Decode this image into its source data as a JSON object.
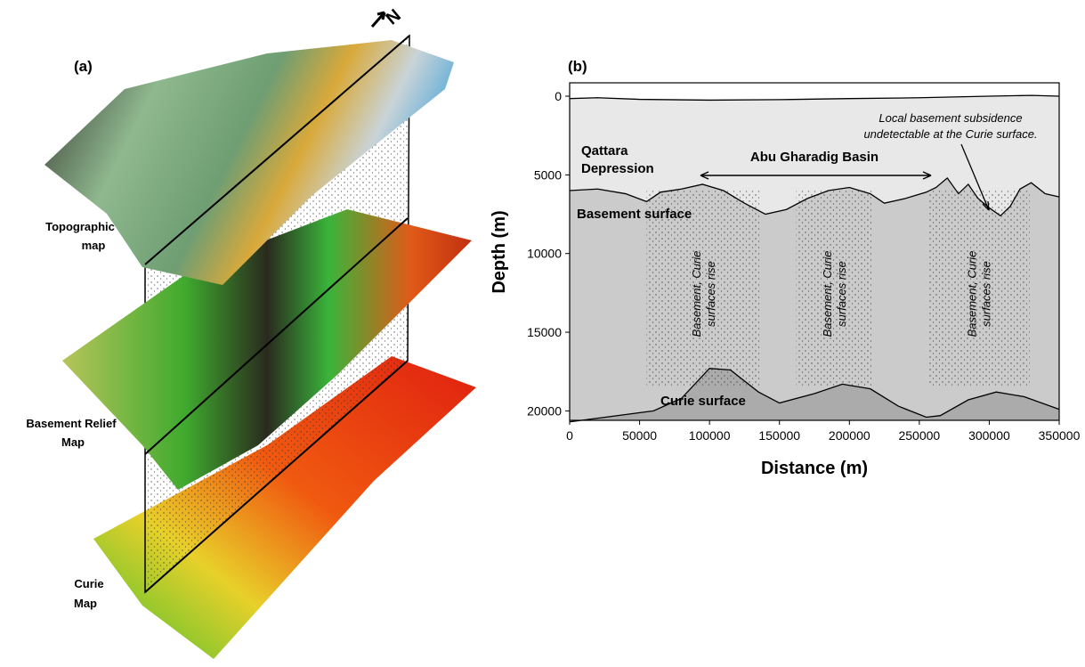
{
  "panel_a": {
    "label": "(a)",
    "north": "N",
    "maps": [
      [
        "Topographic",
        "map"
      ],
      [
        "Basement Relief",
        "Map"
      ],
      [
        "Curie",
        "Map"
      ]
    ]
  },
  "chart_data": {
    "type": "line",
    "panel_label": "(b)",
    "x_label": "Distance (m)",
    "y_label": "Depth (m)",
    "xlim": [
      0,
      350000
    ],
    "xticks": [
      0,
      50000,
      100000,
      150000,
      200000,
      250000,
      300000,
      350000
    ],
    "ylim": [
      -850,
      20600
    ],
    "yticks": [
      0,
      5000,
      10000,
      15000,
      20000
    ],
    "y_inverted": true,
    "series": [
      {
        "x": [
          0,
          20000,
          50000,
          100000,
          150000,
          200000,
          250000,
          300000,
          330000,
          350000
        ],
        "values": [
          150,
          100,
          200,
          250,
          220,
          150,
          100,
          0,
          -50,
          0
        ],
        "color": "#000000"
      },
      {
        "name": "Basement surface",
        "x": [
          0,
          20000,
          40000,
          55000,
          65000,
          80000,
          95000,
          110000,
          125000,
          140000,
          155000,
          170000,
          185000,
          200000,
          215000,
          225000,
          240000,
          255000,
          262000,
          270000,
          278000,
          285000,
          292000,
          300000,
          308000,
          315000,
          322000,
          330000,
          340000,
          350000
        ],
        "values": [
          6000,
          5900,
          6200,
          6700,
          6100,
          5900,
          5600,
          6000,
          6800,
          7500,
          7200,
          6500,
          6000,
          5800,
          6200,
          6800,
          6500,
          6100,
          5800,
          5200,
          6200,
          5600,
          6500,
          7100,
          7600,
          7000,
          5900,
          5500,
          6200,
          6400
        ],
        "color": "#000000"
      },
      {
        "name": "Curie surface",
        "x": [
          0,
          60000,
          80000,
          100000,
          115000,
          135000,
          150000,
          175000,
          195000,
          215000,
          235000,
          255000,
          265000,
          285000,
          305000,
          325000,
          350000
        ],
        "values": [
          20700,
          20000,
          19200,
          17300,
          17400,
          18800,
          19500,
          18900,
          18300,
          18600,
          19700,
          20400,
          20300,
          19300,
          18800,
          19100,
          19900
        ],
        "color": "#000000"
      }
    ],
    "rise_zones": [
      [
        55000,
        136000
      ],
      [
        162000,
        216000
      ],
      [
        256000,
        329000
      ]
    ],
    "rise_label": [
      "Basement, Curie",
      "surfaces rise"
    ],
    "annotations": {
      "qattara": [
        "Qattara",
        "Depression"
      ],
      "basin": "Abu Gharadig Basin",
      "subsidence": [
        "Local basement subsidence",
        "undetectable at the Curie surface."
      ]
    }
  }
}
